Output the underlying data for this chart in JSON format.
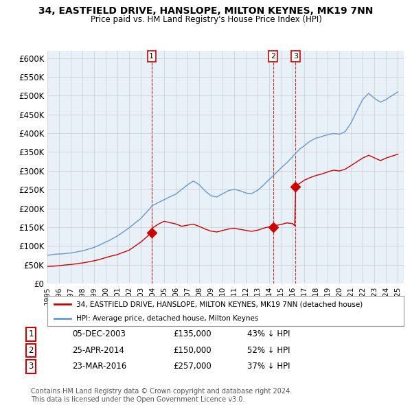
{
  "title": "34, EASTFIELD DRIVE, HANSLOPE, MILTON KEYNES, MK19 7NN",
  "subtitle": "Price paid vs. HM Land Registry's House Price Index (HPI)",
  "ylim": [
    0,
    620000
  ],
  "sale_dates": [
    2003.92,
    2014.32,
    2016.23
  ],
  "sale_prices": [
    135000,
    150000,
    257000
  ],
  "sale_labels": [
    "1",
    "2",
    "3"
  ],
  "legend_line1": "34, EASTFIELD DRIVE, HANSLOPE, MILTON KEYNES, MK19 7NN (detached house)",
  "legend_line2": "HPI: Average price, detached house, Milton Keynes",
  "table_data": [
    [
      "1",
      "05-DEC-2003",
      "£135,000",
      "43% ↓ HPI"
    ],
    [
      "2",
      "25-APR-2014",
      "£150,000",
      "52% ↓ HPI"
    ],
    [
      "3",
      "23-MAR-2016",
      "£257,000",
      "37% ↓ HPI"
    ]
  ],
  "footer": "Contains HM Land Registry data © Crown copyright and database right 2024.\nThis data is licensed under the Open Government Licence v3.0.",
  "hpi_color": "#aaccee",
  "hpi_line_color": "#6699cc",
  "price_color": "#cc0000",
  "grid_color": "#cccccc",
  "chart_bg": "#e8f0f8",
  "background_color": "#ffffff",
  "xlim_start": 1995.0,
  "xlim_end": 2025.5
}
